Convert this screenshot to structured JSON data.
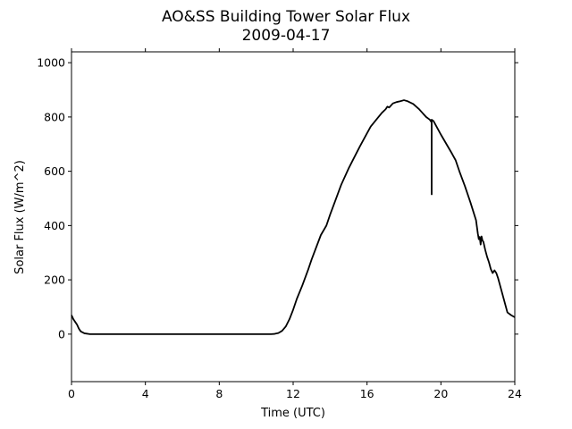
{
  "chart_data": {
    "type": "line",
    "title": "AO&SS Building Tower Solar Flux",
    "subtitle": "2009-04-17",
    "xlabel": "Time (UTC)",
    "ylabel": "Solar Flux (W/m^2)",
    "xlim": [
      0,
      24
    ],
    "ylim": [
      -175,
      1040
    ],
    "xticks": [
      0,
      4,
      8,
      12,
      16,
      20,
      24
    ],
    "yticks": [
      0,
      200,
      400,
      600,
      800,
      1000
    ],
    "grid": false,
    "legend": "none",
    "line_color": "#000000",
    "series": [
      {
        "x": [
          0,
          0.1,
          0.2,
          0.3,
          0.4,
          0.5,
          0.7,
          1.0,
          1.5,
          2,
          3,
          4,
          5,
          6,
          7,
          8,
          9,
          10,
          10.5,
          10.8,
          11.0,
          11.2,
          11.4,
          11.6,
          11.8,
          12.0,
          12.2,
          12.5,
          12.8,
          13.0,
          13.5,
          13.8,
          14.0,
          14.3,
          14.6,
          15.0,
          15.3,
          15.6,
          16.0,
          16.2,
          16.5,
          16.8,
          17.0,
          17.1,
          17.2,
          17.4,
          17.6,
          17.8,
          18.0,
          18.2,
          18.5,
          18.8,
          19.0,
          19.2,
          19.4,
          19.5,
          19.5,
          19.5,
          19.6,
          19.8,
          20.0,
          20.3,
          20.6,
          20.8,
          21.0,
          21.3,
          21.6,
          21.9,
          22.0,
          22.05,
          22.1,
          22.15,
          22.2,
          22.25,
          22.3,
          22.4,
          22.5,
          22.6,
          22.7,
          22.8,
          22.9,
          23.0,
          23.1,
          23.2,
          23.4,
          23.6,
          23.8,
          24.0
        ],
        "y": [
          70,
          55,
          45,
          35,
          20,
          10,
          3,
          0,
          0,
          0,
          0,
          0,
          0,
          0,
          0,
          0,
          0,
          0,
          0,
          0,
          1,
          4,
          12,
          28,
          55,
          90,
          130,
          180,
          235,
          275,
          365,
          400,
          440,
          495,
          550,
          610,
          650,
          690,
          740,
          765,
          790,
          815,
          828,
          838,
          835,
          850,
          855,
          858,
          862,
          858,
          848,
          830,
          815,
          800,
          790,
          780,
          515,
          790,
          785,
          760,
          735,
          700,
          665,
          640,
          600,
          545,
          485,
          420,
          370,
          350,
          358,
          330,
          360,
          345,
          340,
          310,
          285,
          265,
          240,
          225,
          235,
          225,
          205,
          180,
          130,
          80,
          70,
          62
        ]
      }
    ]
  }
}
